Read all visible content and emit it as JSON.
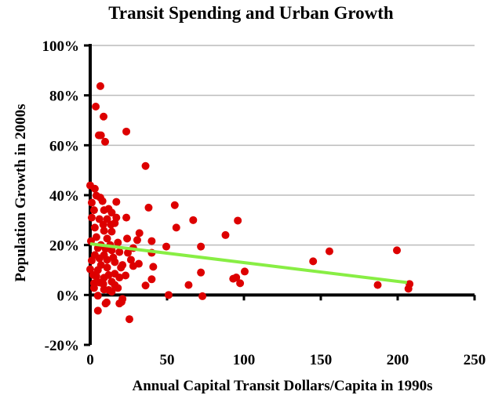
{
  "chart_data": {
    "type": "scatter",
    "title": "Transit Spending and Urban Growth",
    "xlabel": "Annual Capital Transit Dollars/Capita in 1990s",
    "ylabel": "Population Growth in 2000s",
    "xlim": [
      0,
      250
    ],
    "ylim": [
      -20,
      100
    ],
    "xticks": [
      0,
      50,
      100,
      150,
      200,
      250
    ],
    "xtick_labels": [
      "0",
      "50",
      "100",
      "150",
      "200",
      "250"
    ],
    "yticks": [
      -20,
      0,
      20,
      40,
      60,
      80,
      100
    ],
    "ytick_labels": [
      "-20%",
      "0%",
      "20%",
      "40%",
      "60%",
      "80%",
      "100%"
    ],
    "grid": "horizontal",
    "legend": "none",
    "colors": {
      "points": "#dd0000",
      "trendline": "#88ee44",
      "grid": "#bbbbbb",
      "axis": "#000000"
    },
    "trendline": {
      "x": [
        0,
        206
      ],
      "y": [
        20.5,
        5
      ]
    },
    "points": [
      [
        6.6,
        83.7
      ],
      [
        3.6,
        75.5
      ],
      [
        8.7,
        71.5
      ],
      [
        5.6,
        64
      ],
      [
        7,
        64
      ],
      [
        9.7,
        61.4
      ],
      [
        23.5,
        65.5
      ],
      [
        36,
        51.7
      ],
      [
        38,
        35
      ],
      [
        56,
        27
      ],
      [
        55,
        36
      ],
      [
        67,
        30
      ],
      [
        88,
        24
      ],
      [
        96,
        29.8
      ],
      [
        72,
        19.4
      ],
      [
        49.5,
        19.4
      ],
      [
        72,
        9
      ],
      [
        64,
        4
      ],
      [
        51,
        0
      ],
      [
        73,
        -0.5
      ],
      [
        93,
        6.5
      ],
      [
        95,
        7
      ],
      [
        100.5,
        9.4
      ],
      [
        97.5,
        4.7
      ],
      [
        145,
        13.5
      ],
      [
        155.6,
        17.5
      ],
      [
        199.5,
        17.9
      ],
      [
        187,
        4
      ],
      [
        207.7,
        4.4
      ],
      [
        207,
        2.5
      ],
      [
        20.4,
        -2.8
      ],
      [
        10.7,
        -3
      ],
      [
        0,
        43.9
      ],
      [
        3,
        42.6
      ],
      [
        4,
        39.8
      ],
      [
        6.6,
        39
      ],
      [
        8,
        37.6
      ],
      [
        17,
        37.3
      ],
      [
        1,
        37
      ],
      [
        2.5,
        34
      ],
      [
        9,
        34
      ],
      [
        12,
        34.5
      ],
      [
        14,
        33
      ],
      [
        1,
        31
      ],
      [
        6,
        30.4
      ],
      [
        11,
        30.4
      ],
      [
        17,
        31
      ],
      [
        23.5,
        31
      ],
      [
        8.5,
        28.2
      ],
      [
        13.5,
        28.2
      ],
      [
        16,
        28.8
      ],
      [
        9,
        25.7
      ],
      [
        14,
        25.4
      ],
      [
        32,
        24.8
      ],
      [
        4,
        23.2
      ],
      [
        11,
        22.6
      ],
      [
        24,
        22.6
      ],
      [
        30.6,
        22
      ],
      [
        40,
        21.6
      ],
      [
        0.5,
        21.6
      ],
      [
        5,
        18.8
      ],
      [
        10,
        18.5
      ],
      [
        14,
        17.9
      ],
      [
        19,
        17.2
      ],
      [
        24.5,
        16.9
      ],
      [
        28,
        18.8
      ],
      [
        40,
        16.9
      ],
      [
        1,
        13.8
      ],
      [
        6,
        14.7
      ],
      [
        11,
        14.1
      ],
      [
        16,
        13.2
      ],
      [
        26.5,
        14.1
      ],
      [
        31.6,
        12.5
      ],
      [
        0,
        10.3
      ],
      [
        5,
        10
      ],
      [
        11,
        11
      ],
      [
        20,
        11
      ],
      [
        28,
        11.6
      ],
      [
        41,
        11.3
      ],
      [
        23,
        7.8
      ],
      [
        4,
        7.5
      ],
      [
        9,
        6.9
      ],
      [
        16,
        8.5
      ],
      [
        40,
        6.3
      ],
      [
        2.5,
        4.7
      ],
      [
        8.5,
        4.4
      ],
      [
        14,
        5.3
      ],
      [
        36,
        3.8
      ],
      [
        2.5,
        2.8
      ],
      [
        9,
        2.2
      ],
      [
        18,
        2.8
      ],
      [
        14,
        1.3
      ],
      [
        5,
        -0.3
      ],
      [
        21,
        -1.6
      ],
      [
        10,
        -3.4
      ],
      [
        19,
        -3.4
      ],
      [
        5,
        -6.3
      ],
      [
        25.5,
        -9.7
      ],
      [
        3,
        27
      ],
      [
        7,
        20
      ],
      [
        12,
        8
      ],
      [
        15,
        15
      ],
      [
        18,
        21
      ],
      [
        21,
        12
      ],
      [
        7,
        12
      ],
      [
        3,
        16
      ],
      [
        13,
        20
      ],
      [
        9,
        16
      ],
      [
        6,
        5
      ],
      [
        2,
        8
      ],
      [
        16,
        4
      ],
      [
        19,
        7
      ],
      [
        12,
        2
      ]
    ]
  }
}
